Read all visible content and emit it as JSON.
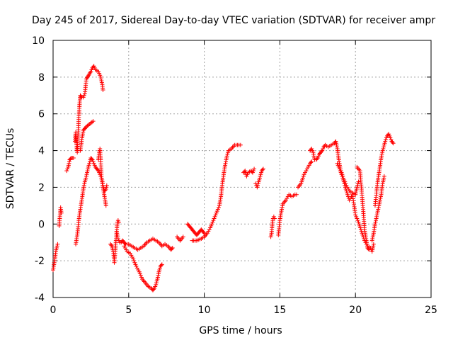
{
  "chart_data": {
    "type": "scatter",
    "title": "Day 245 of 2017, Sidereal Day-to-day VTEC variation (SDTVAR) for receiver ampr",
    "xlabel": "GPS time / hours",
    "ylabel": "SDTVAR / TECUs",
    "xlim": [
      0,
      25
    ],
    "ylim": [
      -4,
      10
    ],
    "xticks": [
      "0",
      "5",
      "10",
      "15",
      "20",
      "25"
    ],
    "yticks": [
      "-4",
      "-2",
      "0",
      "2",
      "4",
      "6",
      "8",
      "10"
    ],
    "grid": true,
    "marker": "+",
    "color": "#ff0000",
    "series": [
      {
        "name": "SDTVAR",
        "segments": [
          [
            [
              0.0,
              -2.5
            ],
            [
              0.1,
              -2.0
            ],
            [
              0.2,
              -1.4
            ],
            [
              0.3,
              -1.1
            ]
          ],
          [
            [
              0.4,
              -0.1
            ],
            [
              0.45,
              0.4
            ],
            [
              0.5,
              0.9
            ],
            [
              0.55,
              0.6
            ]
          ],
          [
            [
              0.9,
              2.9
            ],
            [
              1.0,
              3.1
            ],
            [
              1.1,
              3.5
            ],
            [
              1.2,
              3.6
            ],
            [
              1.35,
              3.6
            ]
          ],
          [
            [
              1.45,
              4.5
            ],
            [
              1.5,
              5.0
            ],
            [
              1.55,
              4.2
            ],
            [
              1.6,
              3.9
            ],
            [
              1.7,
              5.8
            ],
            [
              1.75,
              6.5
            ],
            [
              1.8,
              7.0
            ],
            [
              1.9,
              6.9
            ],
            [
              2.0,
              6.9
            ],
            [
              2.1,
              7.1
            ],
            [
              2.2,
              7.9
            ],
            [
              2.35,
              8.1
            ],
            [
              2.5,
              8.3
            ],
            [
              2.6,
              8.5
            ],
            [
              2.7,
              8.6
            ],
            [
              2.8,
              8.4
            ],
            [
              3.0,
              8.3
            ],
            [
              3.15,
              8.0
            ],
            [
              3.25,
              7.6
            ],
            [
              3.3,
              7.3
            ]
          ],
          [
            [
              1.5,
              -1.1
            ],
            [
              1.6,
              -0.6
            ],
            [
              1.7,
              0.2
            ],
            [
              1.8,
              0.8
            ],
            [
              1.9,
              1.3
            ],
            [
              2.0,
              1.9
            ],
            [
              2.1,
              2.3
            ],
            [
              2.2,
              2.6
            ],
            [
              2.3,
              3.0
            ],
            [
              2.4,
              3.3
            ],
            [
              2.5,
              3.6
            ],
            [
              2.6,
              3.5
            ],
            [
              2.7,
              3.3
            ],
            [
              2.8,
              3.1
            ],
            [
              2.9,
              3.0
            ],
            [
              3.0,
              2.9
            ],
            [
              3.1,
              2.7
            ],
            [
              3.2,
              2.5
            ],
            [
              3.3,
              2.0
            ],
            [
              3.4,
              1.5
            ],
            [
              3.5,
              1.0
            ]
          ],
          [
            [
              1.8,
              4.0
            ],
            [
              1.9,
              4.6
            ],
            [
              2.0,
              5.1
            ],
            [
              2.1,
              5.2
            ],
            [
              2.2,
              5.3
            ],
            [
              2.35,
              5.4
            ],
            [
              2.5,
              5.5
            ],
            [
              2.65,
              5.6
            ]
          ],
          [
            [
              3.0,
              3.5
            ],
            [
              3.05,
              3.9
            ],
            [
              3.1,
              4.1
            ],
            [
              3.15,
              3.5
            ],
            [
              3.2,
              2.6
            ],
            [
              3.3,
              2.1
            ],
            [
              3.4,
              1.8
            ],
            [
              3.5,
              1.9
            ],
            [
              3.55,
              2.1
            ]
          ],
          [
            [
              3.8,
              -1.1
            ],
            [
              3.9,
              -1.2
            ],
            [
              4.0,
              -1.6
            ],
            [
              4.05,
              -2.1
            ],
            [
              4.1,
              -1.6
            ],
            [
              4.15,
              -1.0
            ],
            [
              4.2,
              -0.5
            ],
            [
              4.25,
              0.1
            ],
            [
              4.3,
              0.2
            ],
            [
              4.35,
              0.1
            ]
          ],
          [
            [
              4.2,
              -0.4
            ],
            [
              4.3,
              -0.8
            ],
            [
              4.4,
              -1.0
            ],
            [
              4.5,
              -1.0
            ],
            [
              4.6,
              -0.9
            ],
            [
              4.7,
              -1.0
            ],
            [
              4.8,
              -1.1
            ],
            [
              5.0,
              -1.1
            ],
            [
              5.2,
              -1.2
            ],
            [
              5.4,
              -1.3
            ],
            [
              5.6,
              -1.4
            ],
            [
              5.8,
              -1.3
            ],
            [
              6.0,
              -1.2
            ],
            [
              6.2,
              -1.0
            ],
            [
              6.4,
              -0.9
            ],
            [
              6.6,
              -0.8
            ],
            [
              6.8,
              -0.9
            ],
            [
              7.0,
              -1.0
            ],
            [
              7.2,
              -1.2
            ],
            [
              7.4,
              -1.1
            ],
            [
              7.6,
              -1.2
            ],
            [
              7.8,
              -1.4
            ],
            [
              7.9,
              -1.3
            ]
          ],
          [
            [
              4.7,
              -1.2
            ],
            [
              4.9,
              -1.5
            ],
            [
              5.1,
              -1.6
            ],
            [
              5.3,
              -1.9
            ],
            [
              5.5,
              -2.3
            ],
            [
              5.7,
              -2.6
            ],
            [
              5.9,
              -3.0
            ],
            [
              6.1,
              -3.2
            ],
            [
              6.3,
              -3.4
            ],
            [
              6.5,
              -3.5
            ],
            [
              6.6,
              -3.6
            ],
            [
              6.7,
              -3.5
            ],
            [
              6.8,
              -3.3
            ],
            [
              6.9,
              -3.0
            ],
            [
              7.0,
              -2.6
            ],
            [
              7.1,
              -2.3
            ],
            [
              7.2,
              -2.2
            ]
          ],
          [
            [
              8.2,
              -0.7
            ],
            [
              8.4,
              -0.9
            ],
            [
              8.6,
              -0.7
            ]
          ],
          [
            [
              8.9,
              0.0
            ],
            [
              9.0,
              -0.1
            ],
            [
              9.1,
              -0.2
            ],
            [
              9.2,
              -0.3
            ],
            [
              9.3,
              -0.4
            ],
            [
              9.4,
              -0.5
            ],
            [
              9.5,
              -0.6
            ],
            [
              9.6,
              -0.5
            ],
            [
              9.7,
              -0.4
            ],
            [
              9.8,
              -0.3
            ],
            [
              9.9,
              -0.4
            ],
            [
              10.0,
              -0.5
            ]
          ],
          [
            [
              9.2,
              -0.9
            ],
            [
              9.5,
              -0.9
            ],
            [
              9.8,
              -0.8
            ],
            [
              10.0,
              -0.7
            ],
            [
              10.2,
              -0.5
            ],
            [
              10.4,
              -0.2
            ],
            [
              10.6,
              0.2
            ],
            [
              10.8,
              0.6
            ],
            [
              11.0,
              1.0
            ],
            [
              11.1,
              1.5
            ],
            [
              11.2,
              2.2
            ],
            [
              11.3,
              2.8
            ],
            [
              11.4,
              3.3
            ],
            [
              11.5,
              3.7
            ],
            [
              11.6,
              4.0
            ],
            [
              11.8,
              4.1
            ],
            [
              12.0,
              4.3
            ],
            [
              12.2,
              4.3
            ],
            [
              12.4,
              4.3
            ]
          ],
          [
            [
              12.6,
              2.8
            ],
            [
              12.7,
              2.9
            ],
            [
              12.8,
              2.6
            ],
            [
              12.9,
              2.8
            ],
            [
              13.1,
              2.9
            ],
            [
              13.2,
              2.8
            ],
            [
              13.3,
              3.0
            ]
          ],
          [
            [
              13.4,
              2.2
            ],
            [
              13.5,
              2.0
            ],
            [
              13.6,
              2.3
            ],
            [
              13.7,
              2.6
            ],
            [
              13.8,
              2.9
            ],
            [
              13.9,
              3.0
            ]
          ],
          [
            [
              14.4,
              -0.7
            ],
            [
              14.45,
              -0.5
            ],
            [
              14.5,
              0.0
            ],
            [
              14.55,
              0.3
            ],
            [
              14.6,
              0.4
            ],
            [
              14.65,
              0.3
            ]
          ],
          [
            [
              14.9,
              -0.6
            ],
            [
              15.0,
              0.2
            ],
            [
              15.1,
              0.7
            ],
            [
              15.2,
              1.1
            ],
            [
              15.4,
              1.3
            ],
            [
              15.6,
              1.6
            ],
            [
              15.8,
              1.5
            ],
            [
              16.0,
              1.6
            ],
            [
              16.1,
              1.6
            ]
          ],
          [
            [
              16.2,
              2.0
            ],
            [
              16.4,
              2.2
            ],
            [
              16.6,
              2.7
            ],
            [
              16.8,
              3.0
            ],
            [
              17.0,
              3.3
            ],
            [
              17.1,
              3.4
            ]
          ],
          [
            [
              17.0,
              4.0
            ],
            [
              17.1,
              4.1
            ],
            [
              17.2,
              3.9
            ],
            [
              17.3,
              3.5
            ],
            [
              17.4,
              3.5
            ],
            [
              17.5,
              3.6
            ],
            [
              17.6,
              3.8
            ],
            [
              17.7,
              3.9
            ],
            [
              17.8,
              4.0
            ],
            [
              17.9,
              4.2
            ],
            [
              18.0,
              4.3
            ],
            [
              18.2,
              4.2
            ],
            [
              18.4,
              4.3
            ],
            [
              18.6,
              4.4
            ],
            [
              18.7,
              4.5
            ],
            [
              18.8,
              4.1
            ],
            [
              18.9,
              3.5
            ],
            [
              19.0,
              3.0
            ],
            [
              19.2,
              2.5
            ],
            [
              19.4,
              2.1
            ],
            [
              19.6,
              1.8
            ],
            [
              19.8,
              1.7
            ],
            [
              20.0,
              1.6
            ],
            [
              20.1,
              2.0
            ],
            [
              20.2,
              2.3
            ]
          ],
          [
            [
              18.8,
              3.3
            ],
            [
              19.0,
              2.9
            ],
            [
              19.2,
              2.4
            ],
            [
              19.4,
              1.8
            ],
            [
              19.6,
              1.3
            ],
            [
              19.8,
              1.6
            ],
            [
              20.0,
              0.5
            ],
            [
              20.2,
              0.1
            ],
            [
              20.4,
              -0.4
            ],
            [
              20.6,
              -0.9
            ],
            [
              20.8,
              -1.2
            ],
            [
              21.0,
              -1.3
            ],
            [
              21.1,
              -1.5
            ],
            [
              21.2,
              -1.1
            ]
          ],
          [
            [
              20.1,
              3.1
            ],
            [
              20.3,
              2.9
            ],
            [
              20.4,
              1.9
            ],
            [
              20.5,
              0.9
            ],
            [
              20.6,
              -0.3
            ],
            [
              20.7,
              -0.8
            ],
            [
              20.8,
              -1.3
            ],
            [
              20.9,
              -1.4
            ]
          ],
          [
            [
              21.1,
              -0.9
            ],
            [
              21.2,
              -0.5
            ],
            [
              21.3,
              0.0
            ],
            [
              21.4,
              0.4
            ],
            [
              21.5,
              0.8
            ],
            [
              21.6,
              1.2
            ],
            [
              21.7,
              1.6
            ],
            [
              21.8,
              2.2
            ],
            [
              21.9,
              2.6
            ]
          ],
          [
            [
              21.3,
              1.0
            ],
            [
              21.4,
              1.8
            ],
            [
              21.5,
              2.5
            ],
            [
              21.6,
              3.0
            ],
            [
              21.7,
              3.6
            ],
            [
              21.8,
              4.0
            ],
            [
              21.9,
              4.3
            ],
            [
              22.0,
              4.6
            ],
            [
              22.1,
              4.8
            ],
            [
              22.2,
              4.9
            ],
            [
              22.3,
              4.7
            ],
            [
              22.4,
              4.5
            ],
            [
              22.5,
              4.4
            ]
          ]
        ]
      }
    ]
  }
}
